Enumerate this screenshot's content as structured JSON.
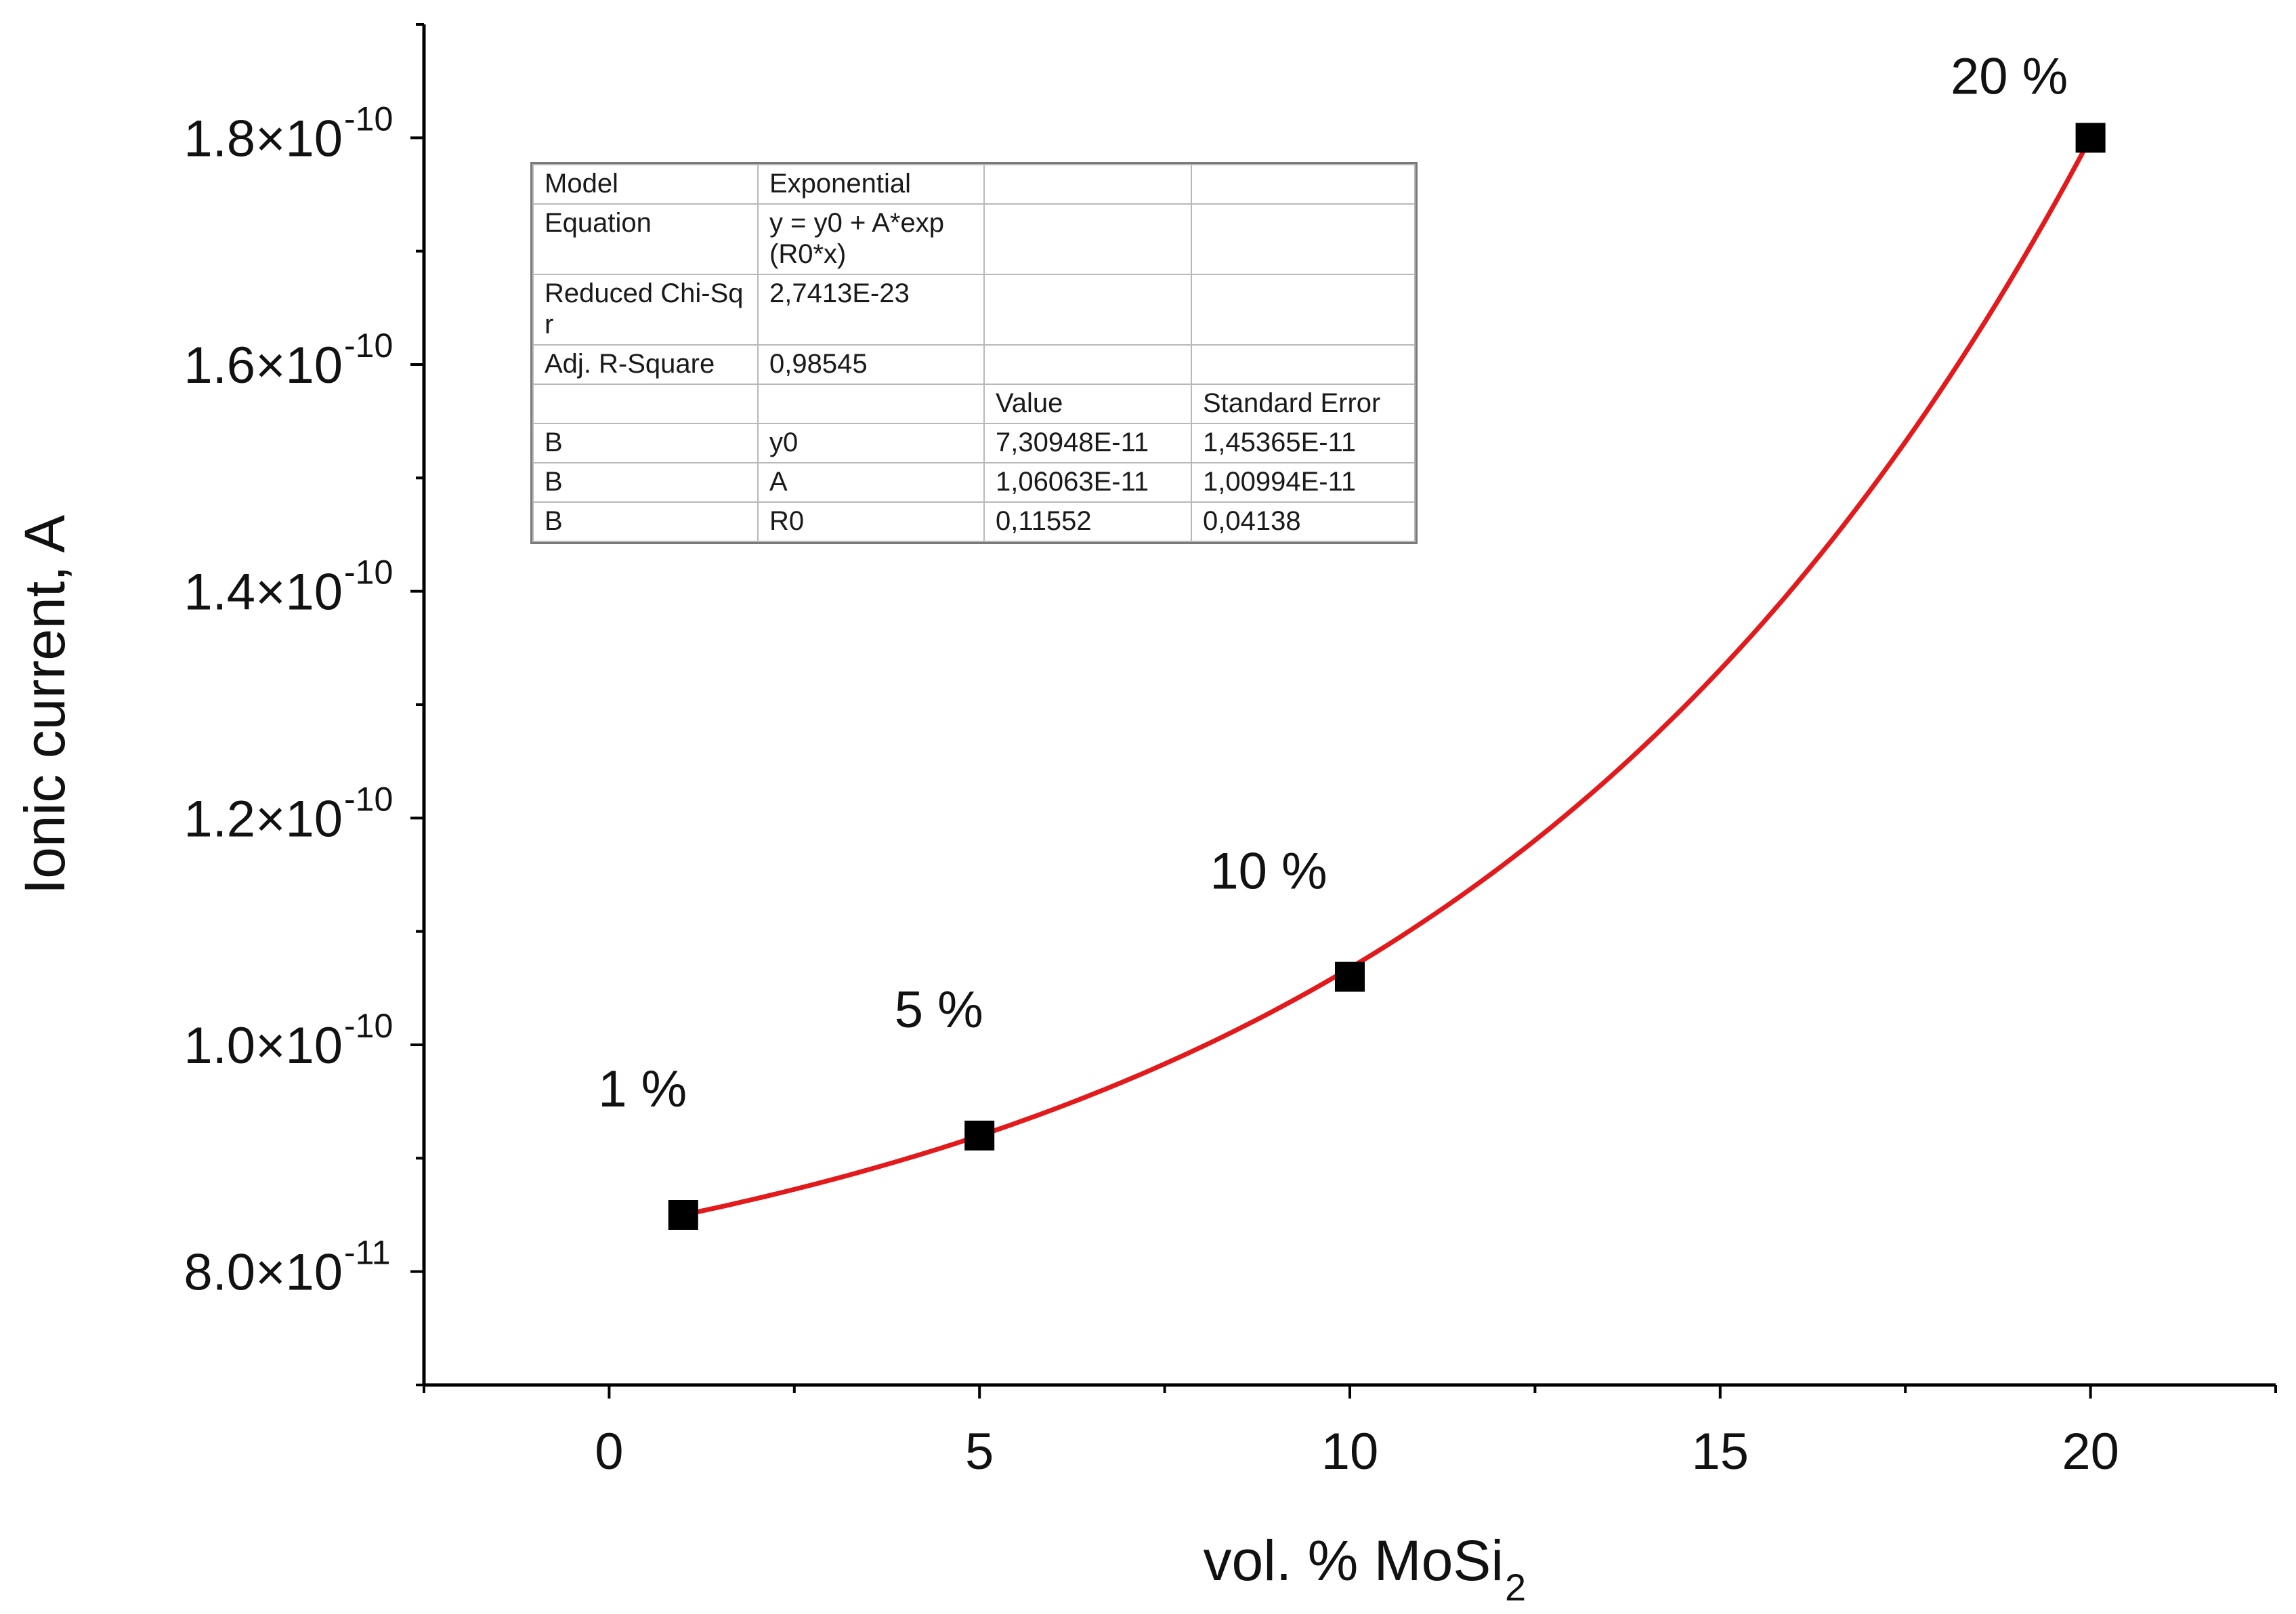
{
  "chart_data": {
    "type": "scatter",
    "xlabel": "vol. % MoSi",
    "xlabel_subscript": "2",
    "ylabel": "Ionic current, A",
    "xlim": [
      -2.5,
      22.5
    ],
    "ylim": [
      7e-11,
      1.9e-10
    ],
    "x_ticks": [
      0,
      5,
      10,
      15,
      20
    ],
    "x_tick_labels": [
      "0",
      "5",
      "10",
      "15",
      "20"
    ],
    "y_ticks": [
      8e-11,
      1e-10,
      1.2e-10,
      1.4e-10,
      1.6e-10,
      1.8e-10
    ],
    "y_tick_labels": [
      {
        "mantissa": "8.0×10",
        "exponent": "-11"
      },
      {
        "mantissa": "1.0×10",
        "exponent": "-10"
      },
      {
        "mantissa": "1.2×10",
        "exponent": "-10"
      },
      {
        "mantissa": "1.4×10",
        "exponent": "-10"
      },
      {
        "mantissa": "1.6×10",
        "exponent": "-10"
      },
      {
        "mantissa": "1.8×10",
        "exponent": "-10"
      }
    ],
    "series": [
      {
        "name": "B",
        "marker": "square",
        "color": "#000000",
        "x": [
          1,
          5,
          10,
          20
        ],
        "y": [
          8.5e-11,
          9.2e-11,
          1.06e-10,
          1.8e-10
        ],
        "labels": [
          "1 %",
          "5 %",
          "10 %",
          "20 %"
        ]
      }
    ],
    "fit": {
      "type": "exponential",
      "color": "#e31a1c",
      "y0": 7.30948e-11,
      "A": 1.06063e-11,
      "R0": 0.11552,
      "x_range": [
        1,
        20
      ]
    },
    "fit_table": [
      [
        "Model",
        "Exponential",
        "",
        ""
      ],
      [
        "Equation",
        "y = y0 + A*exp(R0*x)",
        "",
        ""
      ],
      [
        "Reduced Chi-Sqr",
        "2,7413E-23",
        "",
        ""
      ],
      [
        "Adj. R-Square",
        "0,98545",
        "",
        ""
      ],
      [
        "",
        "",
        "Value",
        "Standard Error"
      ],
      [
        "B",
        "y0",
        "7,30948E-11",
        "1,45365E-11"
      ],
      [
        "B",
        "A",
        "1,06063E-11",
        "1,00994E-11"
      ],
      [
        "B",
        "R0",
        "0,11552",
        "0,04138"
      ]
    ]
  }
}
